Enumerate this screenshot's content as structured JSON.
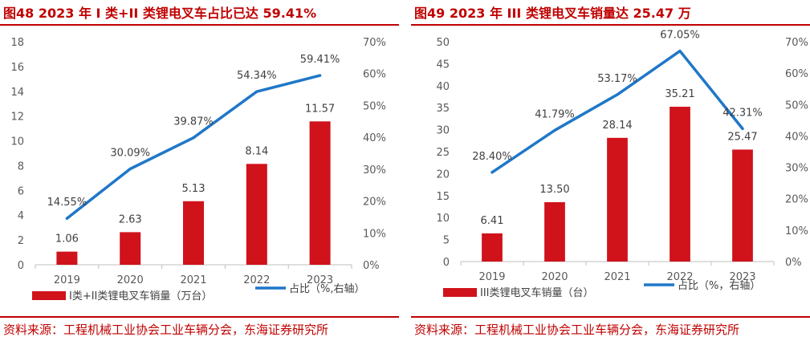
{
  "colors": {
    "accent": "#c00000",
    "bar": "#d0121b",
    "line": "#1f77c8",
    "axis": "#bfbfbf",
    "text": "#595959"
  },
  "panels": [
    {
      "title": "图48  2023 年 I 类+II 类锂电叉车占比已达 59.41%",
      "source": "资料来源：工程机械工业协会工业车辆分会，东海证券研究所"
    },
    {
      "title": "图49  2023 年 III 类锂电叉车销量达 25.47 万",
      "source": "资料来源：工程机械工业协会工业车辆分会，东海证券研究所"
    }
  ],
  "chart_data": [
    {
      "type": "bar",
      "categories": [
        "2019",
        "2020",
        "2021",
        "2022",
        "2023"
      ],
      "series": [
        {
          "name": "I类+II类锂电叉车销量（万台）",
          "type": "bar",
          "axis": "left",
          "values": [
            1.06,
            2.63,
            5.13,
            8.14,
            11.57
          ],
          "labels": [
            "1.06",
            "2.63",
            "5.13",
            "8.14",
            "11.57"
          ]
        },
        {
          "name": "占比（%,右轴）",
          "type": "line",
          "axis": "right",
          "values": [
            14.55,
            30.09,
            39.87,
            54.34,
            59.41
          ],
          "labels": [
            "14.55%",
            "30.09%",
            "39.87%",
            "54.34%",
            "59.41%"
          ]
        }
      ],
      "ylim": [
        0,
        18
      ],
      "yticks": [
        "0",
        "2",
        "4",
        "6",
        "8",
        "10",
        "12",
        "14",
        "16",
        "18"
      ],
      "y2lim": [
        0,
        70
      ],
      "y2ticks": [
        "0%",
        "10%",
        "20%",
        "30%",
        "40%",
        "50%",
        "60%",
        "70%"
      ],
      "legend_position": "bottom",
      "grid": false
    },
    {
      "type": "bar",
      "categories": [
        "2019",
        "2020",
        "2021",
        "2022",
        "2023"
      ],
      "series": [
        {
          "name": "III类锂电叉车销量（台）",
          "type": "bar",
          "axis": "left",
          "values": [
            6.41,
            13.5,
            28.14,
            35.21,
            25.47
          ],
          "labels": [
            "6.41",
            "13.50",
            "28.14",
            "35.21",
            "25.47"
          ]
        },
        {
          "name": "占比（%，右轴）",
          "type": "line",
          "axis": "right",
          "values": [
            28.4,
            41.79,
            53.17,
            67.05,
            42.31
          ],
          "labels": [
            "28.40%",
            "41.79%",
            "53.17%",
            "67.05%",
            "42.31%"
          ]
        }
      ],
      "ylim": [
        0,
        50
      ],
      "yticks": [
        "0",
        "5",
        "10",
        "15",
        "20",
        "25",
        "30",
        "35",
        "40",
        "45",
        "50"
      ],
      "y2lim": [
        0,
        70
      ],
      "y2ticks": [
        "0%",
        "10%",
        "20%",
        "30%",
        "40%",
        "50%",
        "60%",
        "70%"
      ],
      "legend_position": "bottom",
      "grid": false
    }
  ]
}
